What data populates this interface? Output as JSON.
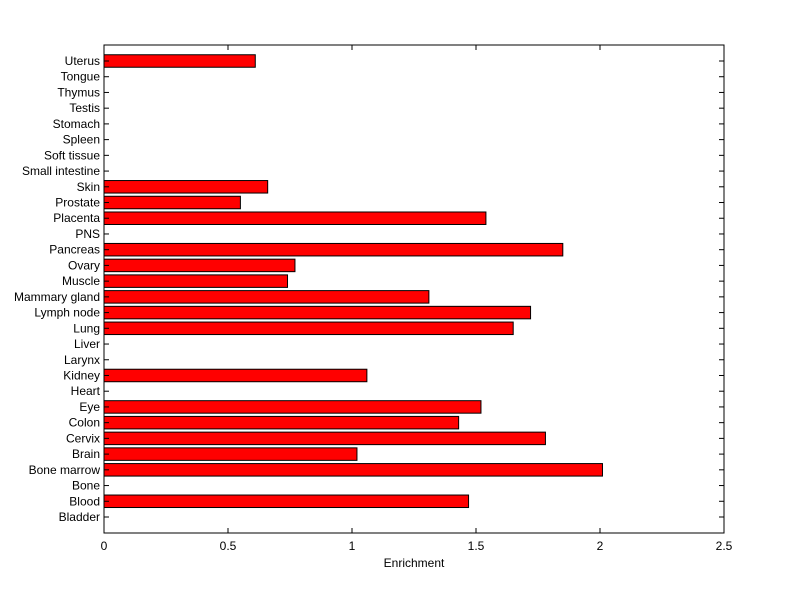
{
  "chart_data": {
    "type": "bar",
    "orientation": "horizontal",
    "title": "",
    "xlabel": "Enrichment",
    "ylabel": "",
    "xlim": [
      0,
      2.5
    ],
    "xticks": [
      "0",
      "0.5",
      "1",
      "1.5",
      "2",
      "2.5"
    ],
    "xtick_values": [
      0,
      0.5,
      1,
      1.5,
      2,
      2.5
    ],
    "grid": false,
    "legend": "none",
    "bar_color": "#ff0000",
    "categories": [
      "Bladder",
      "Blood",
      "Bone",
      "Bone marrow",
      "Brain",
      "Cervix",
      "Colon",
      "Eye",
      "Heart",
      "Kidney",
      "Larynx",
      "Liver",
      "Lung",
      "Lymph node",
      "Mammary gland",
      "Muscle",
      "Ovary",
      "Pancreas",
      "PNS",
      "Placenta",
      "Prostate",
      "Skin",
      "Small intestine",
      "Soft tissue",
      "Spleen",
      "Stomach",
      "Testis",
      "Thymus",
      "Tongue",
      "Uterus"
    ],
    "values": [
      0,
      1.47,
      0,
      2.01,
      1.02,
      1.78,
      1.43,
      1.52,
      0,
      1.06,
      0,
      0,
      1.65,
      1.72,
      1.31,
      0.74,
      0.77,
      1.85,
      0,
      1.54,
      0.55,
      0.66,
      0,
      0,
      0,
      0,
      0,
      0,
      0,
      0.61
    ]
  }
}
